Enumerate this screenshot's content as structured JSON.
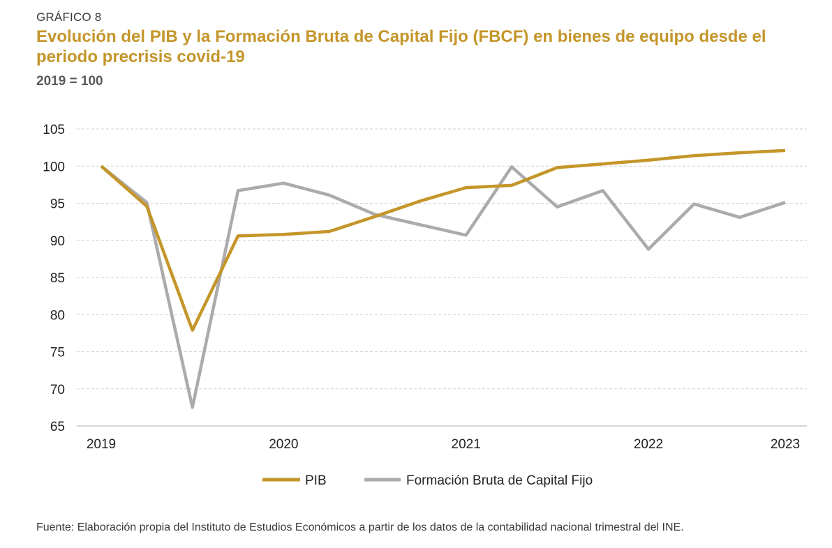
{
  "header": {
    "label": "GRÁFICO 8",
    "title": "Evolución del PIB y la Formación Bruta de Capital Fijo (FBCF) en bienes de equipo desde el periodo precrisis covid-19",
    "subtitle": "2019 = 100"
  },
  "colors": {
    "pib": "#c4962a",
    "fbcf": "#acaaab",
    "grid": "#cfcfcf",
    "axis": "#c8c8c8",
    "text": "#222222"
  },
  "chart_data": {
    "type": "line",
    "x": [
      0,
      1,
      2,
      3,
      4,
      5,
      6,
      7,
      8,
      9,
      10,
      11,
      12,
      13,
      14,
      15
    ],
    "x_tick_positions": [
      0,
      4,
      8,
      12,
      15
    ],
    "x_tick_labels": [
      "2019",
      "2020",
      "2021",
      "2022",
      "2023"
    ],
    "y_ticks": [
      65,
      70,
      75,
      80,
      85,
      90,
      95,
      100,
      105
    ],
    "ylim": [
      65,
      105
    ],
    "grid": true,
    "legend_position": "bottom",
    "series": [
      {
        "name": "PIB",
        "color_key": "pib",
        "values": [
          100,
          94.6,
          77.9,
          90.6,
          90.8,
          91.2,
          93.2,
          95.3,
          97.1,
          97.4,
          99.8,
          100.3,
          100.8,
          101.4,
          101.8,
          102.1
        ]
      },
      {
        "name": "Formación Bruta de Capital Fijo",
        "color_key": "fbcf",
        "values": [
          100,
          95.1,
          67.5,
          96.7,
          97.7,
          96.1,
          93.5,
          92.1,
          90.7,
          99.9,
          94.5,
          96.7,
          88.8,
          94.9,
          93.1,
          95.1
        ]
      }
    ]
  },
  "source": "Fuente: Elaboración propia del Instituto de Estudios Económicos a partir de los datos de la contabilidad nacional trimestral del INE."
}
